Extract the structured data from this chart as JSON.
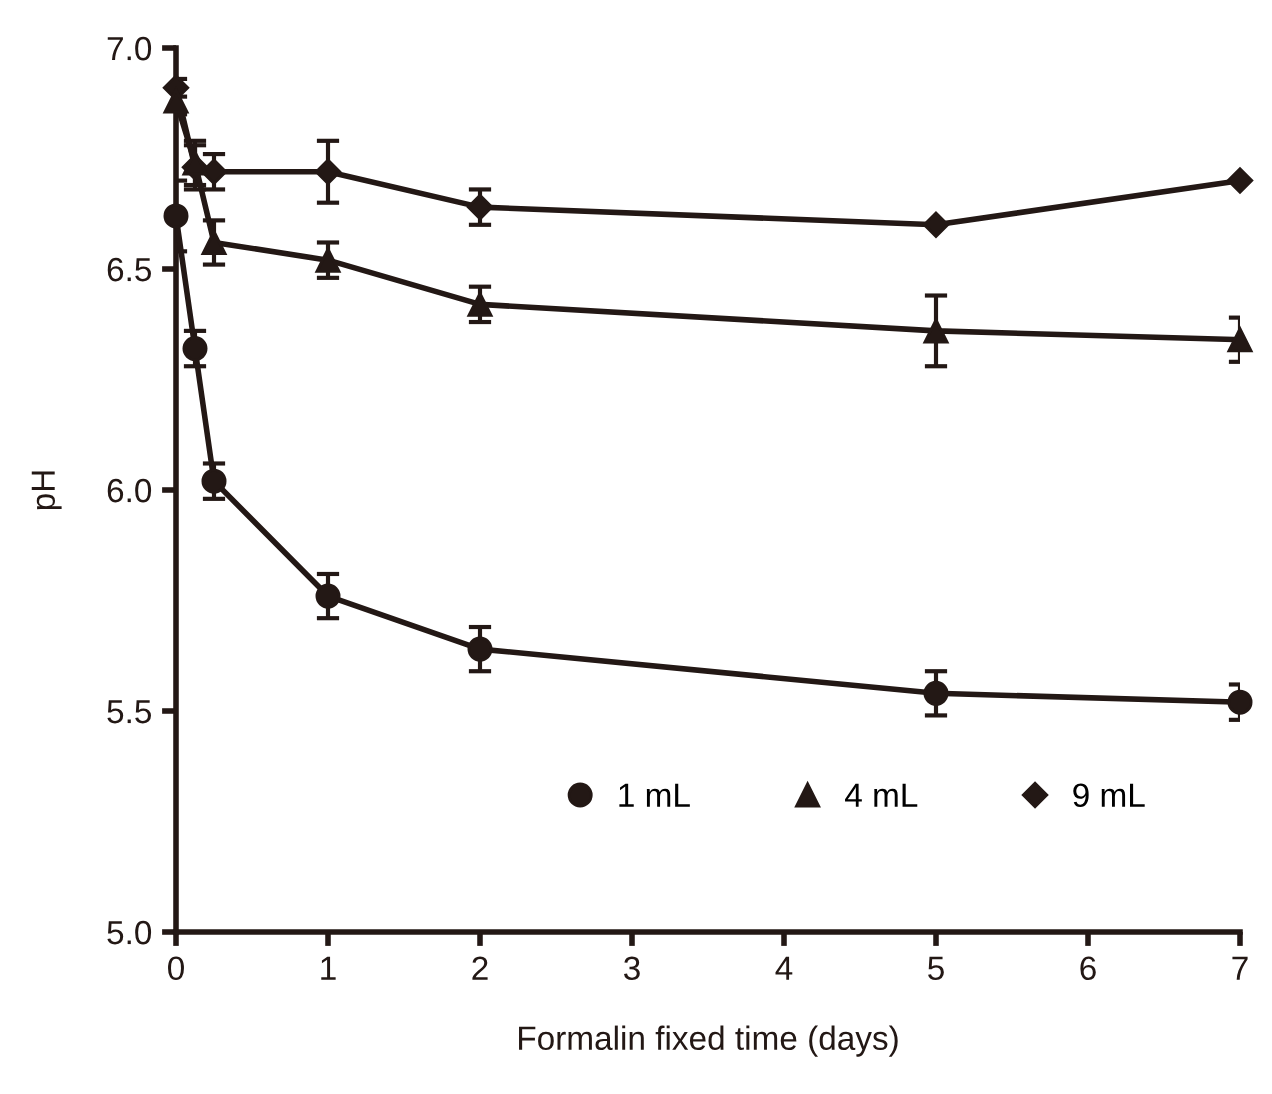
{
  "chart_data": {
    "type": "line",
    "xlabel": "Formalin fixed time (days)",
    "ylabel": "pH",
    "x": [
      0,
      0.125,
      0.25,
      1,
      2,
      5,
      7
    ],
    "xlim": [
      0,
      7
    ],
    "xticks": [
      0,
      1,
      2,
      3,
      4,
      5,
      6,
      7
    ],
    "ylim": [
      5.0,
      7.0
    ],
    "yticks": [
      {
        "value": 5.0,
        "label": "5.0"
      },
      {
        "value": 5.5,
        "label": "5.5"
      },
      {
        "value": 6.0,
        "label": "6.0"
      },
      {
        "value": 6.5,
        "label": "6.5"
      },
      {
        "value": 7.0,
        "label": "7.0"
      }
    ],
    "grid": false,
    "legend": "bottom",
    "line_style": "solid",
    "series": [
      {
        "name": "1 mL",
        "color": "#231815",
        "marker": "circle",
        "values": [
          6.62,
          6.32,
          6.02,
          5.76,
          5.64,
          5.54,
          5.52
        ],
        "errors": [
          0.08,
          0.04,
          0.04,
          0.05,
          0.05,
          0.05,
          0.04
        ]
      },
      {
        "name": "4 mL",
        "color": "#231815",
        "marker": "triangle",
        "values": [
          6.88,
          6.74,
          6.56,
          6.52,
          6.42,
          6.36,
          6.34
        ],
        "errors": [
          0.03,
          0.05,
          0.05,
          0.04,
          0.04,
          0.08,
          0.05
        ]
      },
      {
        "name": "9 mL",
        "color": "#231815",
        "marker": "diamond",
        "values": [
          6.91,
          6.73,
          6.72,
          6.72,
          6.64,
          6.6,
          6.7
        ],
        "errors": [
          0.02,
          0.05,
          0.04,
          0.07,
          0.04,
          null,
          null
        ]
      }
    ]
  }
}
